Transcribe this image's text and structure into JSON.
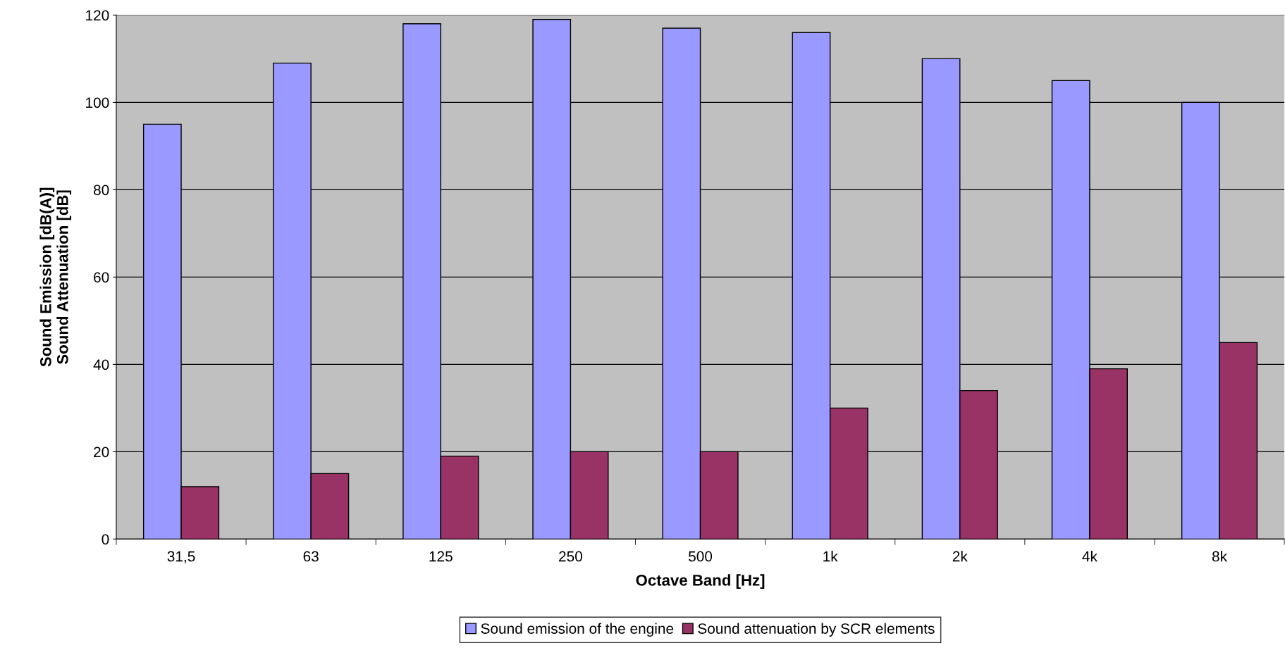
{
  "chart_data": {
    "type": "bar",
    "xlabel": "Octave Band [Hz]",
    "ylabel": "Sound Emission [dB(A)]\nSound Attenuation [dB]",
    "categories": [
      "31,5",
      "63",
      "125",
      "250",
      "500",
      "1k",
      "2k",
      "4k",
      "8k"
    ],
    "series": [
      {
        "name": "Sound emission of the engine",
        "color": "#9999ff",
        "values": [
          95,
          109,
          118,
          119,
          117,
          116,
          110,
          105,
          100
        ]
      },
      {
        "name": "Sound attenuation by SCR elements",
        "color": "#993366",
        "values": [
          12,
          15,
          19,
          20,
          20,
          30,
          34,
          39,
          45
        ]
      }
    ],
    "ylim": [
      0,
      120
    ],
    "yticks": [
      0,
      20,
      40,
      60,
      80,
      100,
      120
    ],
    "grid": "y",
    "legend": "bottom"
  }
}
